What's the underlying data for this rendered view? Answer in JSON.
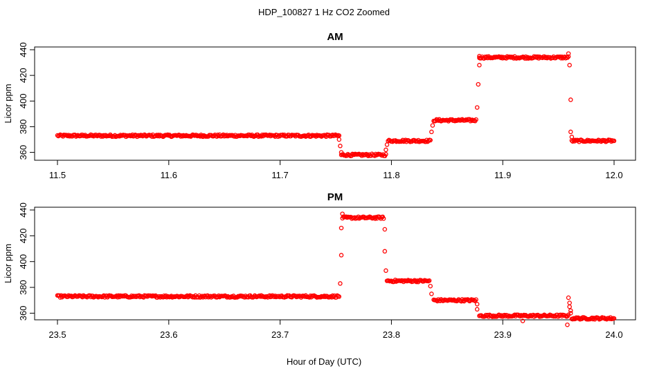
{
  "figure_title": "HDP_100827  1 Hz CO2 Zoomed",
  "xlabel": "Hour of Day (UTC)",
  "chart_data": [
    {
      "type": "scatter",
      "title": "AM",
      "xlabel": "",
      "ylabel": "Licor ppm",
      "xlim": [
        11.5,
        12.0
      ],
      "ylim": [
        356,
        440
      ],
      "xticks": [
        "11.5",
        "11.6",
        "11.7",
        "11.8",
        "11.9",
        "12.0"
      ],
      "yticks": [
        "360",
        "380",
        "400",
        "420",
        "440"
      ],
      "marker_color": "#ff0000",
      "segments": [
        {
          "x0": 11.5,
          "x1": 11.753,
          "y": 373
        },
        {
          "x0": 11.755,
          "x1": 11.795,
          "y": 358
        },
        {
          "x0": 11.797,
          "x1": 11.835,
          "y": 369
        },
        {
          "x0": 11.838,
          "x1": 11.876,
          "y": 385
        },
        {
          "x0": 11.879,
          "x1": 11.959,
          "y": 434
        },
        {
          "x0": 11.962,
          "x1": 12.0,
          "y": 369
        }
      ],
      "transitions": [
        {
          "x": 11.753,
          "y": 370
        },
        {
          "x": 11.754,
          "y": 365
        },
        {
          "x": 11.755,
          "y": 360
        },
        {
          "x": 11.795,
          "y": 362
        },
        {
          "x": 11.796,
          "y": 366
        },
        {
          "x": 11.836,
          "y": 376
        },
        {
          "x": 11.837,
          "y": 381
        },
        {
          "x": 11.877,
          "y": 395
        },
        {
          "x": 11.878,
          "y": 413
        },
        {
          "x": 11.879,
          "y": 428
        },
        {
          "x": 11.879,
          "y": 435
        },
        {
          "x": 11.959,
          "y": 437
        },
        {
          "x": 11.96,
          "y": 428
        },
        {
          "x": 11.961,
          "y": 401
        },
        {
          "x": 11.961,
          "y": 376
        },
        {
          "x": 11.962,
          "y": 372
        }
      ]
    },
    {
      "type": "scatter",
      "title": "PM",
      "xlabel": "",
      "ylabel": "Licor ppm",
      "xlim": [
        23.5,
        24.0
      ],
      "ylim": [
        357,
        440
      ],
      "xticks": [
        "23.5",
        "23.6",
        "23.7",
        "23.8",
        "23.9",
        "24.0"
      ],
      "yticks": [
        "360",
        "380",
        "400",
        "420",
        "440"
      ],
      "marker_color": "#ff0000",
      "segments": [
        {
          "x0": 23.5,
          "x1": 23.753,
          "y": 373
        },
        {
          "x0": 23.756,
          "x1": 23.793,
          "y": 434
        },
        {
          "x0": 23.796,
          "x1": 23.834,
          "y": 385
        },
        {
          "x0": 23.838,
          "x1": 23.876,
          "y": 370
        },
        {
          "x0": 23.879,
          "x1": 23.959,
          "y": 358
        },
        {
          "x0": 23.962,
          "x1": 24.0,
          "y": 356
        }
      ],
      "transitions": [
        {
          "x": 23.754,
          "y": 383
        },
        {
          "x": 23.755,
          "y": 405
        },
        {
          "x": 23.755,
          "y": 426
        },
        {
          "x": 23.756,
          "y": 437
        },
        {
          "x": 23.794,
          "y": 425
        },
        {
          "x": 23.794,
          "y": 408
        },
        {
          "x": 23.795,
          "y": 393
        },
        {
          "x": 23.835,
          "y": 381
        },
        {
          "x": 23.836,
          "y": 375
        },
        {
          "x": 23.877,
          "y": 367
        },
        {
          "x": 23.877,
          "y": 363
        },
        {
          "x": 23.918,
          "y": 354
        },
        {
          "x": 23.958,
          "y": 351
        },
        {
          "x": 23.959,
          "y": 372
        },
        {
          "x": 23.96,
          "y": 368
        },
        {
          "x": 23.96,
          "y": 365
        },
        {
          "x": 23.961,
          "y": 362
        },
        {
          "x": 23.961,
          "y": 360
        }
      ]
    }
  ]
}
